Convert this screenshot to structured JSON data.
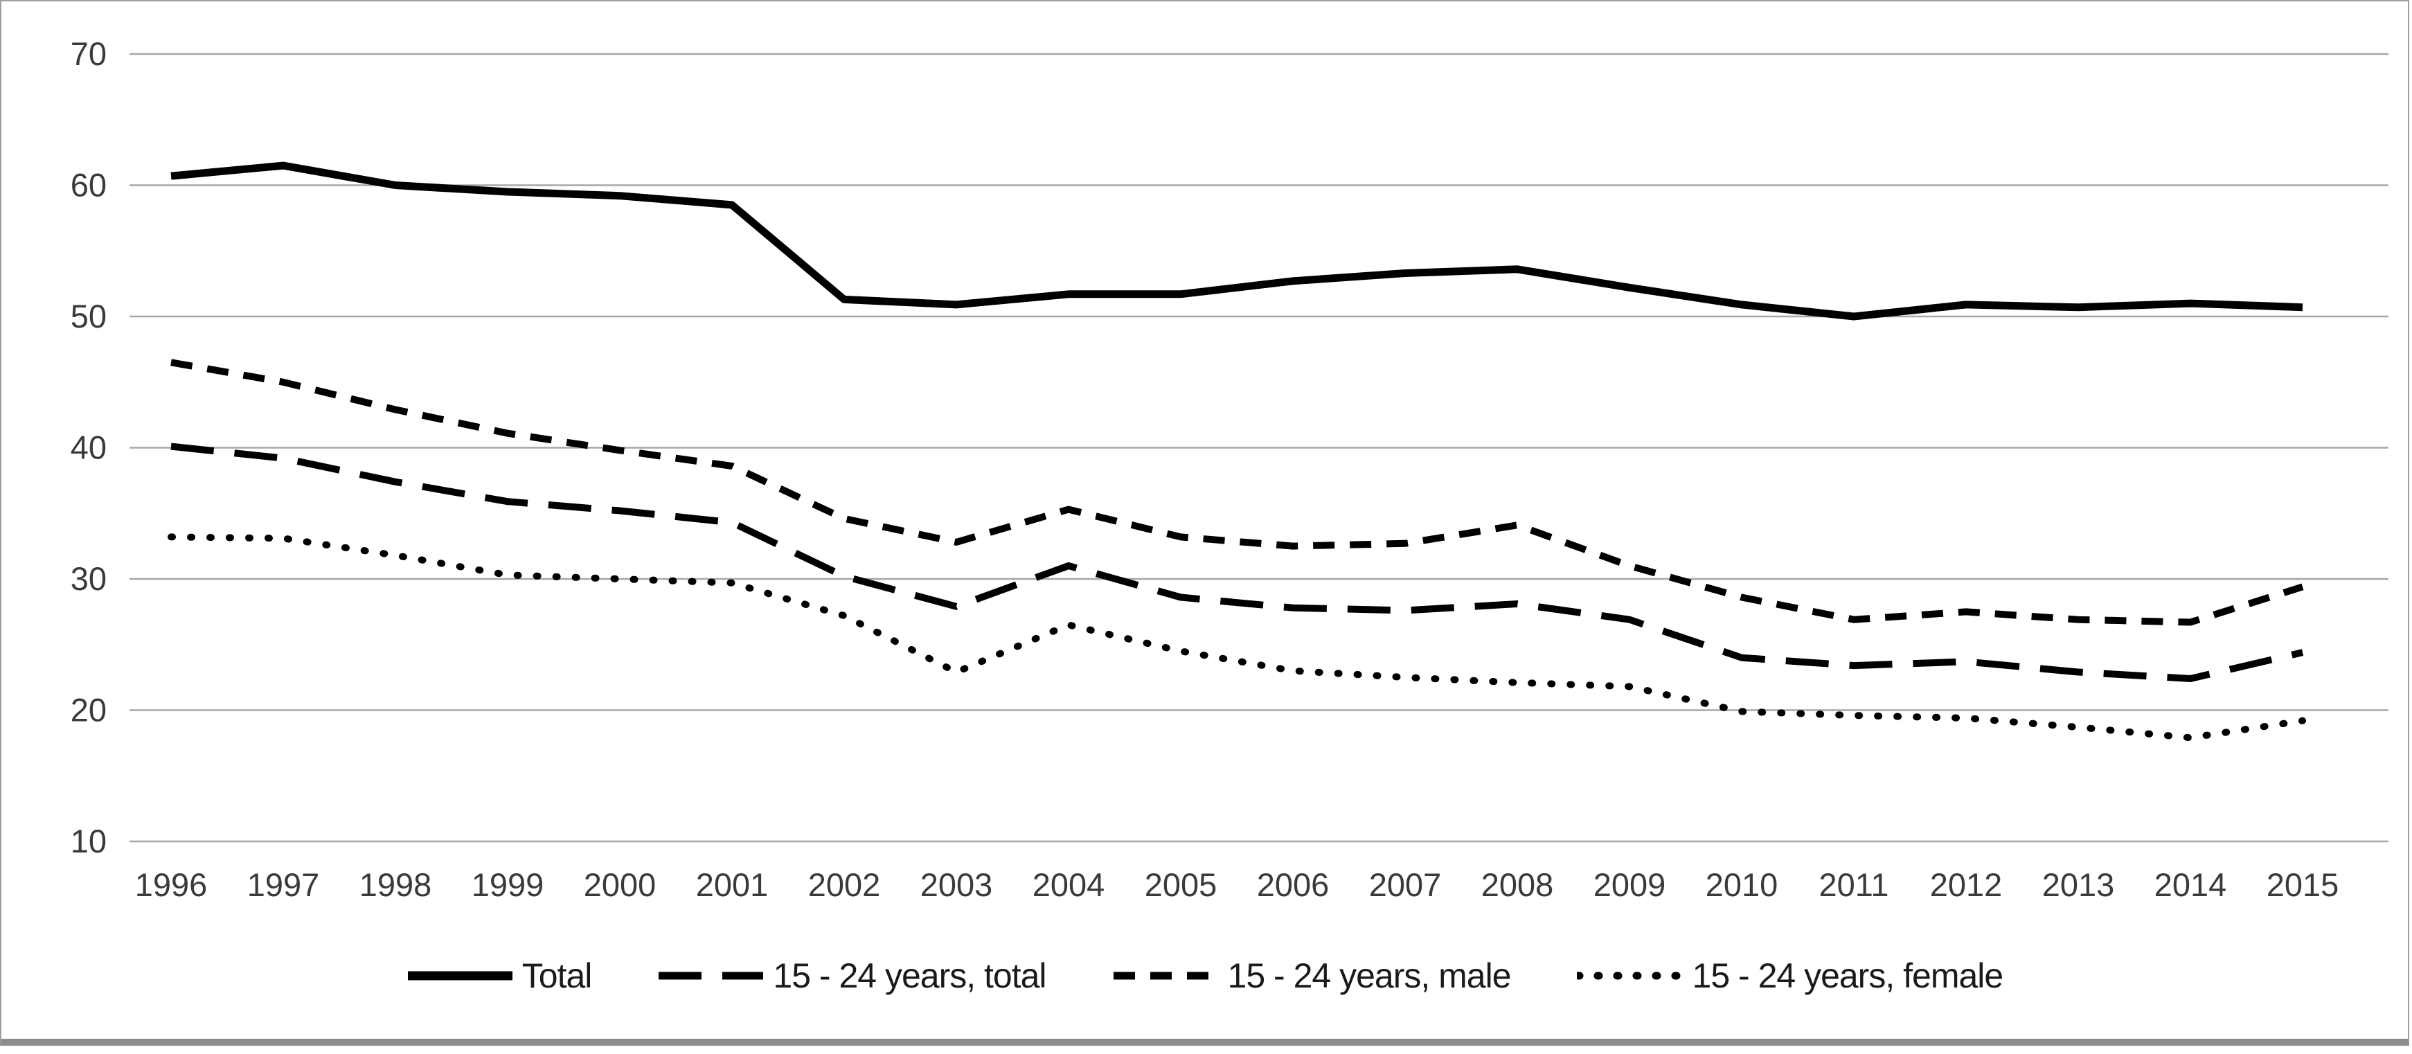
{
  "chart_data": {
    "type": "line",
    "title": "",
    "xlabel": "",
    "ylabel": "",
    "x": [
      1996,
      1997,
      1998,
      1999,
      2000,
      2001,
      2002,
      2003,
      2004,
      2005,
      2006,
      2007,
      2008,
      2009,
      2010,
      2011,
      2012,
      2013,
      2014,
      2015
    ],
    "ylim": [
      10,
      70
    ],
    "ytick_step": 10,
    "ytick_labels": [
      "10",
      "20",
      "30",
      "40",
      "50",
      "60",
      "70"
    ],
    "grid": "horizontal",
    "legend_position": "bottom",
    "line_color": "#000000",
    "gridline_color": "#a6a6a6",
    "tick_label_color": "#3a3a3a",
    "series": [
      {
        "name": "Total",
        "line_style": "solid",
        "values": [
          60.7,
          61.5,
          60.0,
          59.5,
          59.2,
          58.5,
          51.3,
          50.9,
          51.7,
          51.7,
          52.7,
          53.3,
          53.6,
          52.2,
          50.9,
          50.0,
          50.9,
          50.7,
          51.0,
          50.7
        ]
      },
      {
        "name": "15 - 24 years, total",
        "line_style": "long-dash",
        "values": [
          40.1,
          39.2,
          37.4,
          35.9,
          35.2,
          34.3,
          30.2,
          27.9,
          31.0,
          28.6,
          27.8,
          27.6,
          28.1,
          26.9,
          24.0,
          23.4,
          23.7,
          22.9,
          22.4,
          24.4
        ]
      },
      {
        "name": "15 - 24 years, male",
        "line_style": "dash",
        "values": [
          46.5,
          45.0,
          42.9,
          41.1,
          39.8,
          38.6,
          34.6,
          32.8,
          35.3,
          33.2,
          32.5,
          32.7,
          34.1,
          31.0,
          28.6,
          26.9,
          27.5,
          26.9,
          26.7,
          29.4
        ]
      },
      {
        "name": "15 - 24 years, female",
        "line_style": "dot",
        "values": [
          33.2,
          33.1,
          31.8,
          30.3,
          30.0,
          29.7,
          27.2,
          22.9,
          26.5,
          24.5,
          23.0,
          22.5,
          22.1,
          21.8,
          19.9,
          19.6,
          19.4,
          18.7,
          17.9,
          19.2
        ]
      }
    ]
  }
}
